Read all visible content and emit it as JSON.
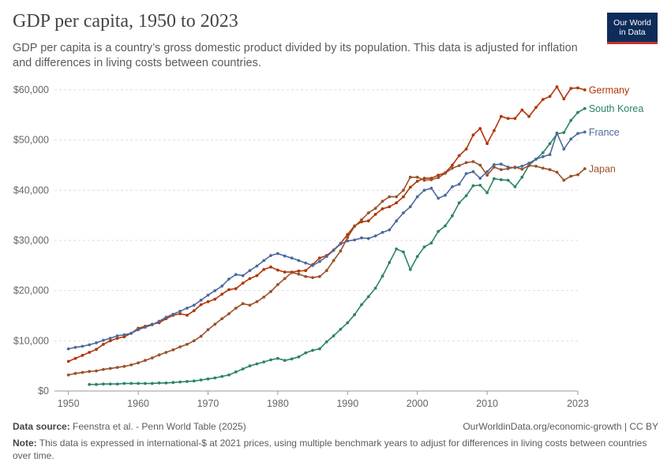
{
  "header": {
    "title": "GDP per capita, 1950 to 2023",
    "subtitle": "GDP per capita is a country’s gross domestic product divided by its population. This data is adjusted for inflation and differences in living costs between countries.",
    "logo_line1": "Our World",
    "logo_line2": "in Data"
  },
  "footer": {
    "source_label": "Data source:",
    "source_text": "Feenstra et al. - Penn World Table (2025)",
    "url": "OurWorldinData.org/economic-growth | CC BY",
    "note_label": "Note:",
    "note_text": "This data is expressed in international-$ at 2021 prices, using multiple benchmark years to adjust for differences in living costs between countries over time."
  },
  "chart_data": {
    "type": "line",
    "title": "GDP per capita, 1950 to 2023",
    "xlim": [
      1948,
      2023
    ],
    "ylim": [
      0,
      60000
    ],
    "x_ticks": [
      1950,
      1960,
      1970,
      1980,
      1990,
      2000,
      2010,
      2023
    ],
    "y_ticks": [
      0,
      10000,
      20000,
      30000,
      40000,
      50000,
      60000
    ],
    "y_tick_labels": [
      "$0",
      "$10,000",
      "$20,000",
      "$30,000",
      "$40,000",
      "$50,000",
      "$60,000"
    ],
    "grid": "horizontal dashed",
    "legend": "right end labels",
    "series": [
      {
        "name": "Germany",
        "color": "#b13507",
        "start": 1950,
        "values": [
          5900,
          6500,
          7100,
          7700,
          8300,
          9300,
          10000,
          10500,
          10800,
          11500,
          12500,
          12900,
          13300,
          13600,
          14400,
          15100,
          15400,
          15100,
          16000,
          17200,
          17800,
          18300,
          19300,
          20200,
          20400,
          21500,
          22400,
          23000,
          24200,
          24700,
          24100,
          23700,
          23700,
          23900,
          24000,
          25200,
          26500,
          27000,
          28100,
          29400,
          31200,
          32900,
          33700,
          33900,
          35200,
          36300,
          36700,
          37500,
          38700,
          40600,
          41800,
          42400,
          42400,
          43000,
          43500,
          45000,
          46900,
          48200,
          51000,
          52300,
          49300,
          51900,
          54700,
          54300,
          54300,
          56000,
          54700,
          56500,
          58100,
          58700,
          60600,
          58200,
          60300,
          60400,
          60000
        ]
      },
      {
        "name": "South Korea",
        "color": "#2c8465",
        "start": 1953,
        "values": [
          1300,
          1300,
          1400,
          1400,
          1400,
          1500,
          1500,
          1500,
          1500,
          1500,
          1600,
          1600,
          1700,
          1800,
          1900,
          2000,
          2200,
          2400,
          2600,
          2900,
          3200,
          3800,
          4400,
          5000,
          5400,
          5800,
          6200,
          6500,
          6100,
          6400,
          6800,
          7600,
          8100,
          8400,
          9800,
          11000,
          12300,
          13600,
          15200,
          17200,
          18800,
          20500,
          22900,
          25600,
          28300,
          27700,
          24200,
          26800,
          28700,
          29500,
          31800,
          32900,
          34900,
          37500,
          38900,
          40900,
          41000,
          39500,
          42300,
          42100,
          42000,
          40700,
          42600,
          45000,
          46200,
          47500,
          49300,
          51200,
          51500,
          53900,
          55500,
          56300
        ]
      },
      {
        "name": "France",
        "color": "#4c6a9c",
        "start": 1950,
        "values": [
          8400,
          8700,
          8900,
          9200,
          9600,
          10100,
          10500,
          11000,
          11200,
          11500,
          12200,
          12700,
          13200,
          13900,
          14700,
          15300,
          15900,
          16500,
          17100,
          18100,
          19100,
          20000,
          20900,
          22300,
          23200,
          23000,
          24000,
          24900,
          26000,
          27000,
          27400,
          26900,
          26500,
          26000,
          25500,
          25000,
          25800,
          26800,
          28000,
          29300,
          29900,
          30100,
          30500,
          30400,
          30900,
          31600,
          32100,
          33900,
          35500,
          36700,
          38700,
          40000,
          40400,
          38400,
          39000,
          40700,
          41200,
          43300,
          43700,
          42400,
          43700,
          45100,
          45200,
          44600,
          44500,
          44800,
          45400,
          46200,
          46700,
          47100,
          51400,
          48200,
          50200,
          51300,
          51600
        ]
      },
      {
        "name": "Japan",
        "color": "#9a5129",
        "start": 1950,
        "values": [
          3200,
          3500,
          3700,
          3900,
          4000,
          4300,
          4500,
          4700,
          4900,
          5200,
          5600,
          6100,
          6600,
          7200,
          7700,
          8200,
          8800,
          9300,
          10000,
          10900,
          12200,
          13300,
          14400,
          15400,
          16500,
          17400,
          17100,
          17800,
          18700,
          19800,
          21200,
          22400,
          23600,
          23300,
          22800,
          22600,
          22800,
          24000,
          26000,
          27900,
          30600,
          32800,
          34100,
          35500,
          36400,
          37800,
          38700,
          38700,
          40000,
          42600,
          42600,
          42000,
          42100,
          42500,
          43400,
          44400,
          44900,
          45500,
          45700,
          45000,
          43000,
          44600,
          44100,
          44300,
          44600,
          44200,
          44900,
          44800,
          44400,
          44100,
          43600,
          42000,
          42800,
          43100,
          44300
        ]
      }
    ]
  }
}
